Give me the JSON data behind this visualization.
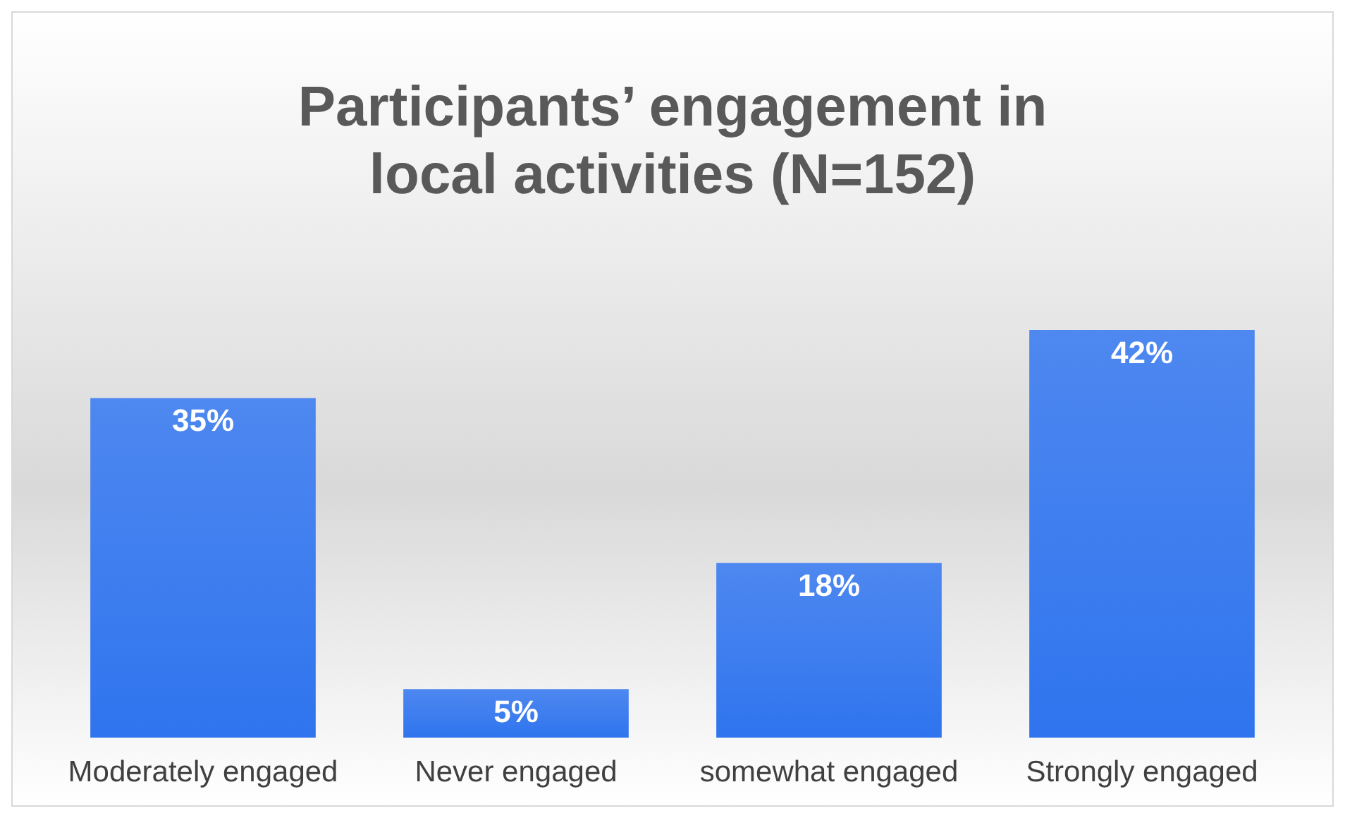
{
  "chart_data": {
    "type": "bar",
    "title": "Participants’ engagement in\nlocal activities (N=152)",
    "categories": [
      "Moderately engaged",
      "Never engaged",
      "somewhat engaged",
      "Strongly engaged"
    ],
    "values": [
      35,
      5,
      18,
      42
    ],
    "color": "#2f74ee",
    "value_labels": [
      "35%",
      "5%",
      "18%",
      "42%"
    ]
  }
}
